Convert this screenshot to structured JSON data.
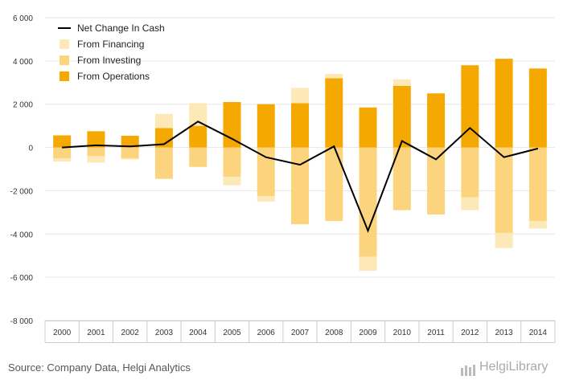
{
  "chart_data": {
    "type": "bar",
    "categories": [
      "2000",
      "2001",
      "2002",
      "2003",
      "2004",
      "2005",
      "2006",
      "2007",
      "2008",
      "2009",
      "2010",
      "2011",
      "2012",
      "2013",
      "2014"
    ],
    "series": [
      {
        "name": "From Operations",
        "type": "bar",
        "color": "#f5a800",
        "values": [
          560,
          750,
          540,
          900,
          1000,
          2100,
          2000,
          2050,
          3200,
          1850,
          2850,
          2500,
          3800,
          4100,
          3650
        ]
      },
      {
        "name": "From Investing",
        "type": "bar",
        "color": "#fcd47e",
        "values": [
          -500,
          -400,
          -500,
          -1450,
          -900,
          -1350,
          -2250,
          -3550,
          -3400,
          -5050,
          -2900,
          -3100,
          -2300,
          -3950,
          -3400
        ]
      },
      {
        "name": "From Financing",
        "type": "bar",
        "color": "#fde8b8",
        "values": [
          -150,
          -300,
          -60,
          650,
          1050,
          -400,
          -250,
          700,
          200,
          -650,
          300,
          0,
          -600,
          -700,
          -350
        ]
      },
      {
        "name": "Net Change In Cash",
        "type": "line",
        "color": "#000000",
        "values": [
          0,
          100,
          50,
          150,
          1200,
          400,
          -450,
          -800,
          50,
          -3850,
          300,
          -550,
          900,
          -450,
          -50
        ]
      }
    ],
    "legend_order": [
      "Net Change In Cash",
      "From Financing",
      "From Investing",
      "From Operations"
    ],
    "legend_position": "top-left",
    "ylim": [
      -8000,
      6000
    ],
    "yticks": [
      -8000,
      -6000,
      -4000,
      -2000,
      0,
      2000,
      4000,
      6000
    ],
    "ytick_labels": [
      "-8 000",
      "-6 000",
      "-4 000",
      "-2 000",
      "0",
      "2 000",
      "4 000",
      "6 000"
    ],
    "grid": true
  },
  "footer": {
    "source": "Source: Company Data, Helgi Analytics",
    "brand": "HelgiLibrary"
  }
}
